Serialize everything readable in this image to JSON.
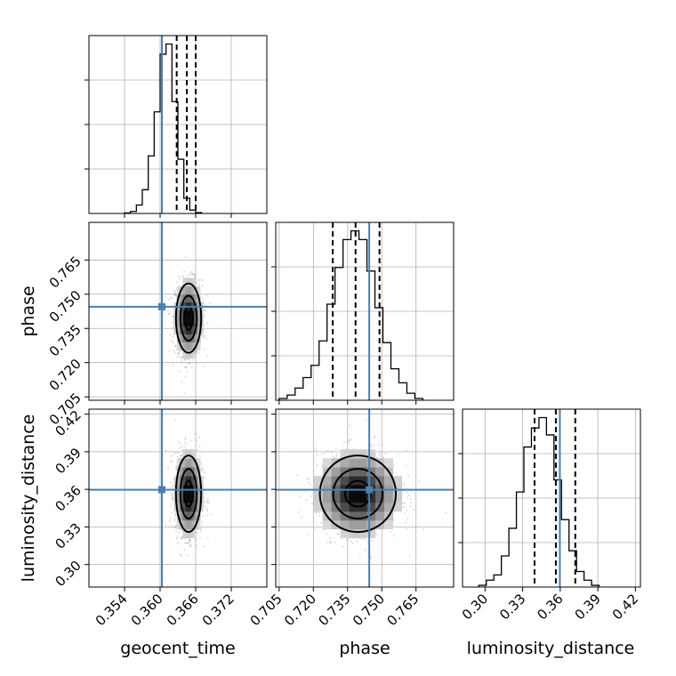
{
  "chart_data": {
    "type": "corner",
    "parameters": [
      "geocent_time",
      "phase",
      "luminosity_distance"
    ],
    "truth_color": "#4682b4",
    "quantile_color": "#000000",
    "truths": {
      "geocent_time": 0.3603,
      "phase": 0.7445,
      "luminosity_distance": 0.3597
    },
    "quantiles": {
      "geocent_time": [
        0.3628,
        0.3645,
        0.366
      ],
      "phase": [
        0.7285,
        0.7385,
        0.749
      ],
      "luminosity_distance": [
        0.3395,
        0.3565,
        0.372
      ]
    },
    "axes": {
      "geocent_time": {
        "range": [
          0.348,
          0.378
        ],
        "ticks": [
          "0.354",
          "0.360",
          "0.366",
          "0.372"
        ],
        "tick_values": [
          0.354,
          0.36,
          0.366,
          0.372
        ]
      },
      "phase": {
        "range": [
          0.7035,
          0.7815
        ],
        "ticks": [
          "0.705",
          "0.720",
          "0.735",
          "0.750",
          "0.765"
        ],
        "tick_values": [
          0.705,
          0.72,
          0.735,
          0.75,
          0.765
        ]
      },
      "luminosity_distance": {
        "range": [
          0.282,
          0.424
        ],
        "ticks": [
          "0.30",
          "0.33",
          "0.36",
          "0.39",
          "0.42"
        ],
        "tick_values": [
          0.3,
          0.33,
          0.36,
          0.39,
          0.42
        ]
      }
    },
    "histograms": {
      "geocent_time": {
        "x0": 0.354,
        "dx": 0.001,
        "counts": [
          0.3,
          1.2,
          5.0,
          14,
          34,
          60,
          94,
          100,
          66,
          32,
          9,
          2,
          0.5
        ]
      },
      "phase": {
        "x0": 0.705,
        "dx": 0.0035,
        "counts": [
          1,
          3,
          7,
          13,
          20,
          34,
          55,
          76,
          92,
          97,
          92,
          74,
          53,
          33,
          18,
          10,
          4,
          1
        ]
      },
      "luminosity_distance": {
        "x0": 0.295,
        "dx": 0.006,
        "counts": [
          1,
          4,
          7,
          18,
          34,
          55,
          81,
          92,
          98,
          88,
          62,
          39,
          21,
          9,
          4,
          1
        ]
      }
    },
    "joint_modes": {
      "phase_vs_geocent_time": {
        "cx": 0.3648,
        "cy": 0.7395,
        "sx": 0.00115,
        "sy": 0.0082
      },
      "luminosity_distance_vs_geocent_time": {
        "cx": 0.3648,
        "cy": 0.3565,
        "sx": 0.00115,
        "sy": 0.0165
      },
      "luminosity_distance_vs_phase": {
        "cx": 0.7395,
        "cy": 0.3565,
        "sx": 0.009,
        "sy": 0.0165
      }
    },
    "grid": true
  }
}
